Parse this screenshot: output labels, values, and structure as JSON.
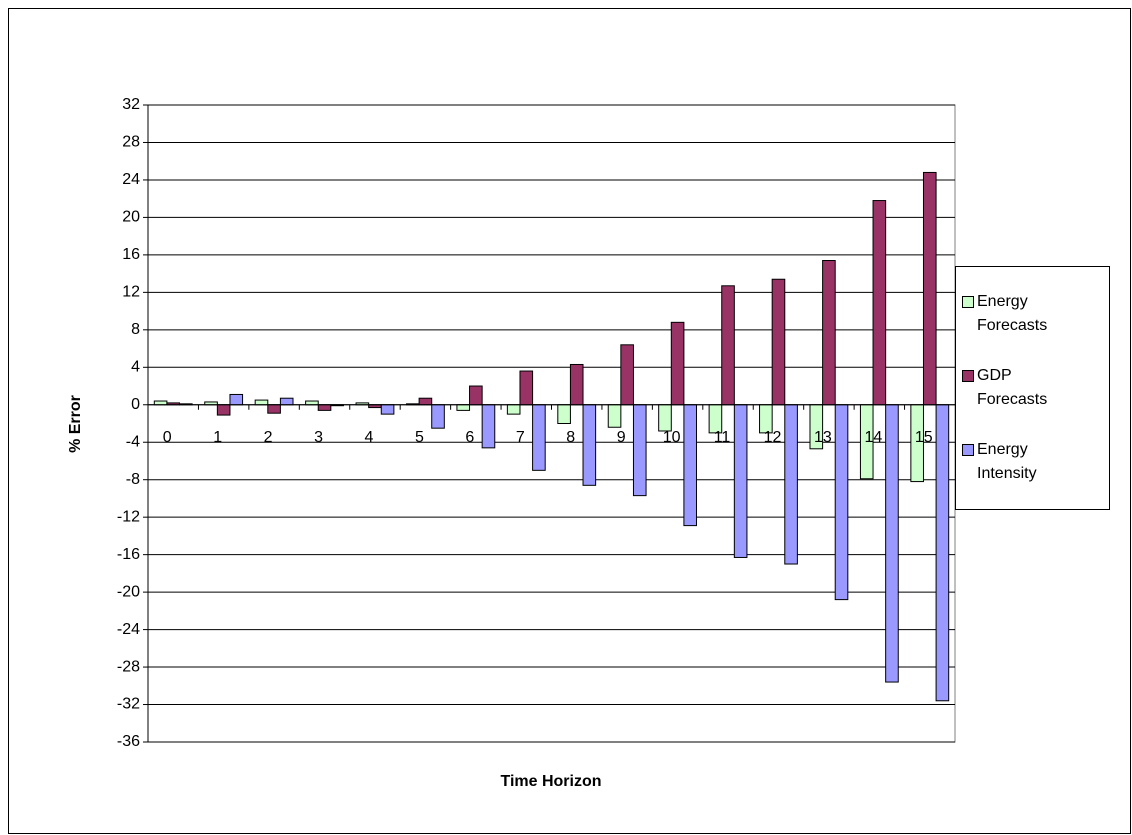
{
  "chart_data": {
    "type": "bar",
    "categories": [
      0,
      1,
      2,
      3,
      4,
      5,
      6,
      7,
      8,
      9,
      10,
      11,
      12,
      13,
      14,
      15
    ],
    "series": [
      {
        "name": "Energy Forecasts",
        "color": "#ccffcc",
        "values": [
          0.4,
          0.3,
          0.5,
          0.4,
          0.2,
          0.1,
          -0.6,
          -1.0,
          -2.0,
          -2.4,
          -2.8,
          -3.0,
          -3.0,
          -4.7,
          -7.9,
          -8.2
        ]
      },
      {
        "name": "GDP Forecasts",
        "color": "#993366",
        "values": [
          0.2,
          -1.1,
          -0.9,
          -0.6,
          -0.3,
          0.7,
          2.0,
          3.6,
          4.3,
          6.4,
          8.8,
          12.7,
          13.4,
          15.4,
          21.8,
          24.8
        ]
      },
      {
        "name": "Energy Intensity",
        "color": "#9999ff",
        "values": [
          0.1,
          1.1,
          0.7,
          -0.1,
          -1.0,
          -2.5,
          -4.6,
          -7.0,
          -8.6,
          -9.7,
          -12.9,
          -16.3,
          -17.0,
          -20.8,
          -29.6,
          -31.6
        ]
      }
    ],
    "ylabel": "% Error",
    "xlabel": "Time Horizon",
    "ylim": [
      -36,
      32
    ],
    "yticks": [
      -36,
      -32,
      -28,
      -24,
      -20,
      -16,
      -12,
      -8,
      -4,
      0,
      4,
      8,
      12,
      16,
      20,
      24,
      28,
      32
    ],
    "grid": true
  }
}
